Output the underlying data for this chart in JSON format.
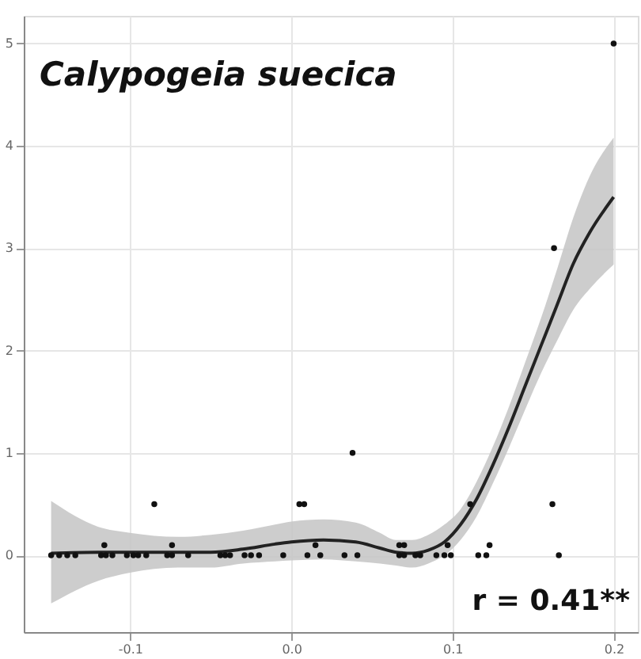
{
  "chart_data": {
    "type": "scatter",
    "title": "Calypogeia suecica",
    "annotations": [
      "r = 0.41**"
    ],
    "xlim": [
      -0.166,
      0.215
    ],
    "xticks": [
      {
        "value": -0.1,
        "label": "-0.1"
      },
      {
        "value": 0.0,
        "label": "0.0"
      },
      {
        "value": 0.1,
        "label": "0.1"
      },
      {
        "value": 0.2,
        "label": "0.2"
      }
    ],
    "ylim": [
      -0.75,
      5.27
    ],
    "yticks": [
      0,
      1,
      2,
      3,
      4,
      5
    ],
    "grid": true,
    "series": [
      {
        "marker": "circle",
        "color": "#111111",
        "x": [
          -0.149,
          -0.144,
          -0.139,
          -0.134,
          -0.118,
          -0.115,
          -0.111,
          -0.102,
          -0.098,
          -0.095,
          -0.09,
          -0.077,
          -0.074,
          -0.064,
          -0.044,
          -0.041,
          -0.038,
          -0.029,
          -0.025,
          -0.02,
          -0.005,
          0.01,
          0.018,
          0.033,
          0.041,
          0.067,
          0.07,
          0.077,
          0.08,
          0.09,
          0.095,
          0.099,
          0.116,
          0.121,
          0.166,
          -0.116,
          -0.074,
          0.015,
          0.067,
          0.07,
          0.097,
          0.123,
          -0.085,
          0.005,
          0.008,
          0.111,
          0.162,
          0.038,
          0.163,
          0.2
        ],
        "values": [
          0,
          0,
          0,
          0,
          0,
          0,
          0,
          0,
          0,
          0,
          0,
          0,
          0,
          0,
          0,
          0,
          0,
          0,
          0,
          0,
          0,
          0,
          0,
          0,
          0,
          0,
          0,
          0,
          0,
          0,
          0,
          0,
          0,
          0,
          0,
          0.1,
          0.1,
          0.1,
          0.1,
          0.1,
          0.1,
          0.1,
          0.5,
          0.5,
          0.5,
          0.5,
          0.5,
          1,
          3,
          5
        ]
      },
      {
        "type": "line",
        "color": "#222222",
        "line_style": "solid",
        "x": [
          -0.149,
          -0.12,
          -0.1,
          -0.07,
          -0.05,
          -0.03,
          -0.01,
          0.0,
          0.02,
          0.04,
          0.055,
          0.065,
          0.075,
          0.085,
          0.095,
          0.105,
          0.115,
          0.125,
          0.135,
          0.145,
          0.155,
          0.165,
          0.175,
          0.185,
          0.2
        ],
        "values": [
          0.02,
          0.03,
          0.03,
          0.03,
          0.03,
          0.06,
          0.11,
          0.13,
          0.15,
          0.13,
          0.07,
          0.03,
          0.02,
          0.05,
          0.13,
          0.3,
          0.55,
          0.88,
          1.25,
          1.65,
          2.05,
          2.45,
          2.85,
          3.15,
          3.5
        ],
        "lower": [
          -0.47,
          -0.25,
          -0.17,
          -0.12,
          -0.12,
          -0.08,
          -0.06,
          -0.05,
          -0.04,
          -0.06,
          -0.08,
          -0.1,
          -0.12,
          -0.08,
          0.0,
          0.15,
          0.38,
          0.7,
          1.05,
          1.42,
          1.78,
          2.1,
          2.4,
          2.6,
          2.84
        ],
        "upper": [
          0.53,
          0.28,
          0.22,
          0.18,
          0.2,
          0.24,
          0.3,
          0.33,
          0.35,
          0.32,
          0.22,
          0.15,
          0.15,
          0.2,
          0.3,
          0.45,
          0.72,
          1.06,
          1.45,
          1.88,
          2.32,
          2.8,
          3.3,
          3.7,
          4.08
        ]
      }
    ]
  }
}
